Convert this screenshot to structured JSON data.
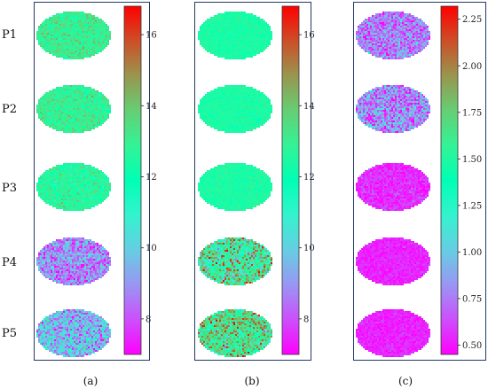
{
  "row_labels": [
    "P1",
    "P2",
    "P3",
    "P4",
    "P5"
  ],
  "panels": [
    {
      "caption": "(a)",
      "colorbar_ticks": [
        "8",
        "10",
        "12",
        "14",
        "16"
      ]
    },
    {
      "caption": "(b)",
      "colorbar_ticks": [
        "8",
        "10",
        "12",
        "14",
        "16"
      ]
    },
    {
      "caption": "(c)",
      "colorbar_ticks": [
        "0.50",
        "0.75",
        "1.00",
        "1.25",
        "1.50",
        "1.75",
        "2.00",
        "2.25"
      ]
    }
  ],
  "chart_data": [
    {
      "type": "heatmap",
      "panel": "(a)",
      "colormap": "rainbow",
      "colorbar_range": [
        7.0,
        16.8
      ],
      "colorbar_ticks": [
        8,
        10,
        12,
        14,
        16
      ],
      "maps": [
        {
          "row": "P1",
          "mean": 13.0,
          "spread": 1.0
        },
        {
          "row": "P2",
          "mean": 12.9,
          "spread": 1.0
        },
        {
          "row": "P3",
          "mean": 12.6,
          "spread": 1.0
        },
        {
          "row": "P4",
          "mean": 8.8,
          "spread": 1.6
        },
        {
          "row": "P5",
          "mean": 9.6,
          "spread": 2.0
        }
      ]
    },
    {
      "type": "heatmap",
      "panel": "(b)",
      "colormap": "rainbow",
      "colorbar_range": [
        7.0,
        16.8
      ],
      "colorbar_ticks": [
        8,
        10,
        12,
        14,
        16
      ],
      "maps": [
        {
          "row": "P1",
          "mean": 12.4,
          "spread": 0.5
        },
        {
          "row": "P2",
          "mean": 12.4,
          "spread": 0.5
        },
        {
          "row": "P3",
          "mean": 12.4,
          "spread": 0.5
        },
        {
          "row": "P4",
          "mean": 12.8,
          "spread": 3.0
        },
        {
          "row": "P5",
          "mean": 13.2,
          "spread": 2.5
        }
      ]
    },
    {
      "type": "heatmap",
      "panel": "(c)",
      "colormap": "rainbow",
      "colorbar_range": [
        0.45,
        2.32
      ],
      "colorbar_ticks": [
        0.5,
        0.75,
        1.0,
        1.25,
        1.5,
        1.75,
        2.0,
        2.25
      ],
      "maps": [
        {
          "row": "P1",
          "mean": 0.75,
          "spread": 0.28
        },
        {
          "row": "P2",
          "mean": 0.8,
          "spread": 0.35
        },
        {
          "row": "P3",
          "mean": 0.55,
          "spread": 0.12
        },
        {
          "row": "P4",
          "mean": 0.53,
          "spread": 0.08
        },
        {
          "row": "P5",
          "mean": 0.53,
          "spread": 0.08
        }
      ]
    }
  ]
}
